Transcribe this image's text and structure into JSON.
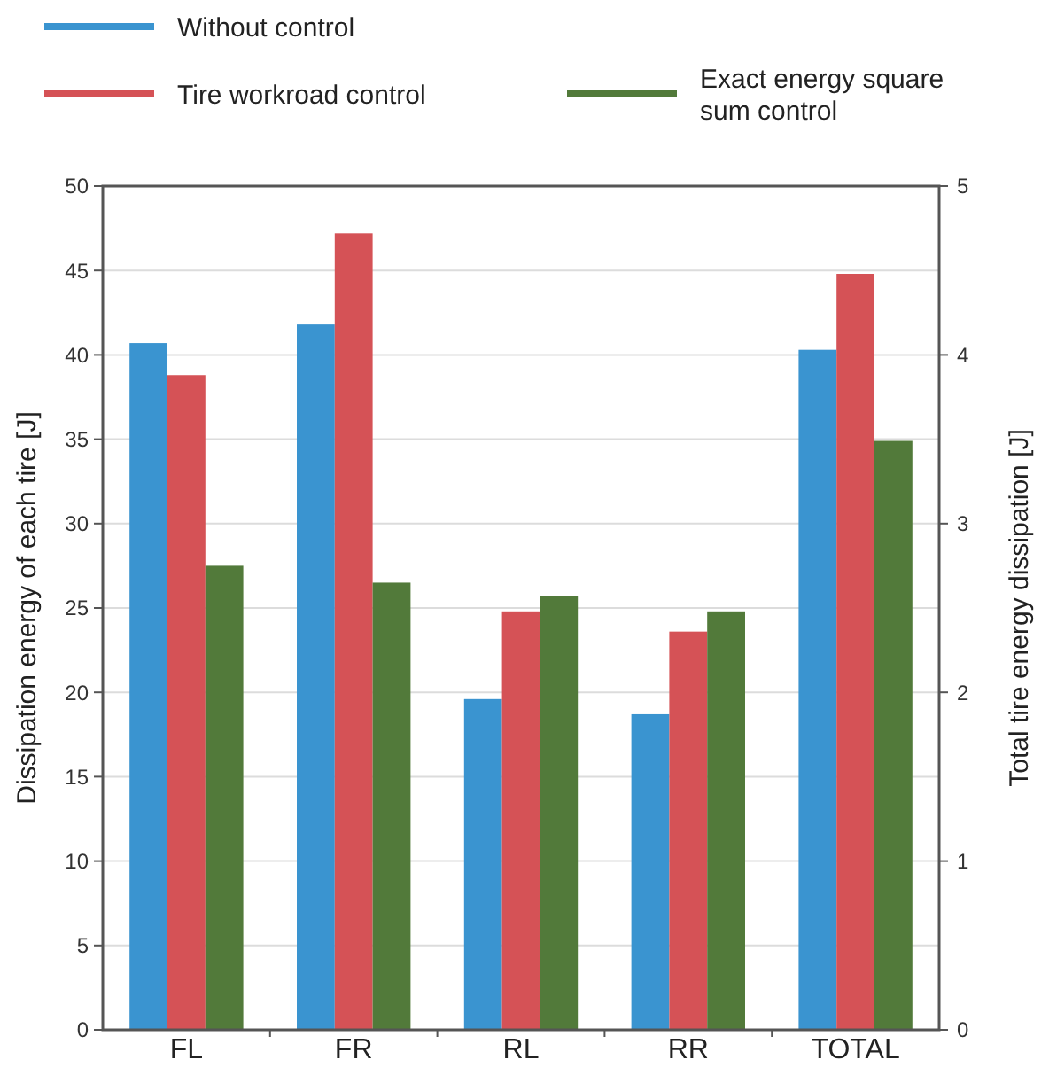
{
  "chart_data": {
    "type": "bar",
    "categories": [
      "FL",
      "FR",
      "RL",
      "RR",
      "TOTAL"
    ],
    "ylabel": "Dissipation energy of each tire [J]",
    "y2label": "Total tire energy dissipation [J]",
    "ylim": [
      0,
      50
    ],
    "yticks": [
      0,
      5,
      10,
      15,
      20,
      25,
      30,
      35,
      40,
      45,
      50
    ],
    "y2lim": [
      0,
      5
    ],
    "y2ticks": [
      0,
      1,
      2,
      3,
      4,
      5
    ],
    "grid": "y",
    "legend": "top left",
    "series": [
      {
        "name": "Without control",
        "color": "#3a94d0",
        "values": [
          40.7,
          41.8,
          19.6,
          18.7,
          null
        ]
      },
      {
        "name": "Tire workroad control",
        "color": "#d55256",
        "values": [
          38.8,
          47.2,
          24.8,
          23.6,
          null
        ]
      },
      {
        "name": "Exact energy square sum control",
        "color": "#527a3a",
        "values": [
          27.5,
          26.5,
          25.7,
          24.8,
          null
        ]
      },
      {
        "color": "#3a94d0",
        "axis": "y2",
        "values": [
          null,
          null,
          null,
          null,
          4.03
        ]
      },
      {
        "color": "#d55256",
        "axis": "y2",
        "values": [
          null,
          null,
          null,
          null,
          4.48
        ]
      },
      {
        "color": "#527a3a",
        "axis": "y2",
        "values": [
          null,
          null,
          null,
          null,
          3.49
        ]
      }
    ]
  }
}
